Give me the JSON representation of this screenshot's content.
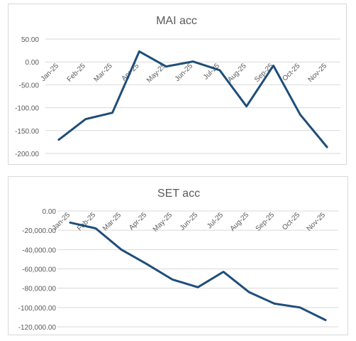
{
  "chart_data": [
    {
      "type": "line",
      "title": "MAI acc",
      "categories": [
        "Jan-25",
        "Feb-25",
        "Mar-25",
        "Apr-25",
        "May-25",
        "Jun-25",
        "Jul-25",
        "Aug-25",
        "Sep-25",
        "Oct-25",
        "Nov-25"
      ],
      "series": [
        {
          "values": [
            -170,
            -125,
            -111,
            23,
            -10,
            1,
            -18,
            -97,
            -8,
            -115,
            -186
          ]
        }
      ],
      "ylim": [
        -200,
        50
      ],
      "yticks": [
        50,
        0,
        -50,
        -100,
        -150,
        -200
      ],
      "ytick_labels": [
        "50.00",
        "0.00",
        "-50.00",
        "-100.00",
        "-150.00",
        "-200.00"
      ],
      "xlabel": "",
      "ylabel": "",
      "grid": true,
      "color": "#1f4e79"
    },
    {
      "type": "line",
      "title": "SET acc",
      "categories": [
        "Jan-25",
        "Feb-25",
        "Mar-25",
        "Apr-25",
        "May-25",
        "Jun-25",
        "Jul-25",
        "Aug-25",
        "Sep-25",
        "Oct-25",
        "Nov-25"
      ],
      "series": [
        {
          "values": [
            -12000,
            -18000,
            -40000,
            -55000,
            -71000,
            -79000,
            -63000,
            -84000,
            -96000,
            -100000,
            -113000
          ]
        }
      ],
      "ylim": [
        -120000,
        0
      ],
      "yticks": [
        0,
        -20000,
        -40000,
        -60000,
        -80000,
        -100000,
        -120000
      ],
      "ytick_labels": [
        "0.00",
        "-20,000.00",
        "-40,000.00",
        "-60,000.00",
        "-80,000.00",
        "-100,000.00",
        "-120,000.00"
      ],
      "xlabel": "",
      "ylabel": "",
      "grid": true,
      "color": "#1f4e79"
    }
  ]
}
